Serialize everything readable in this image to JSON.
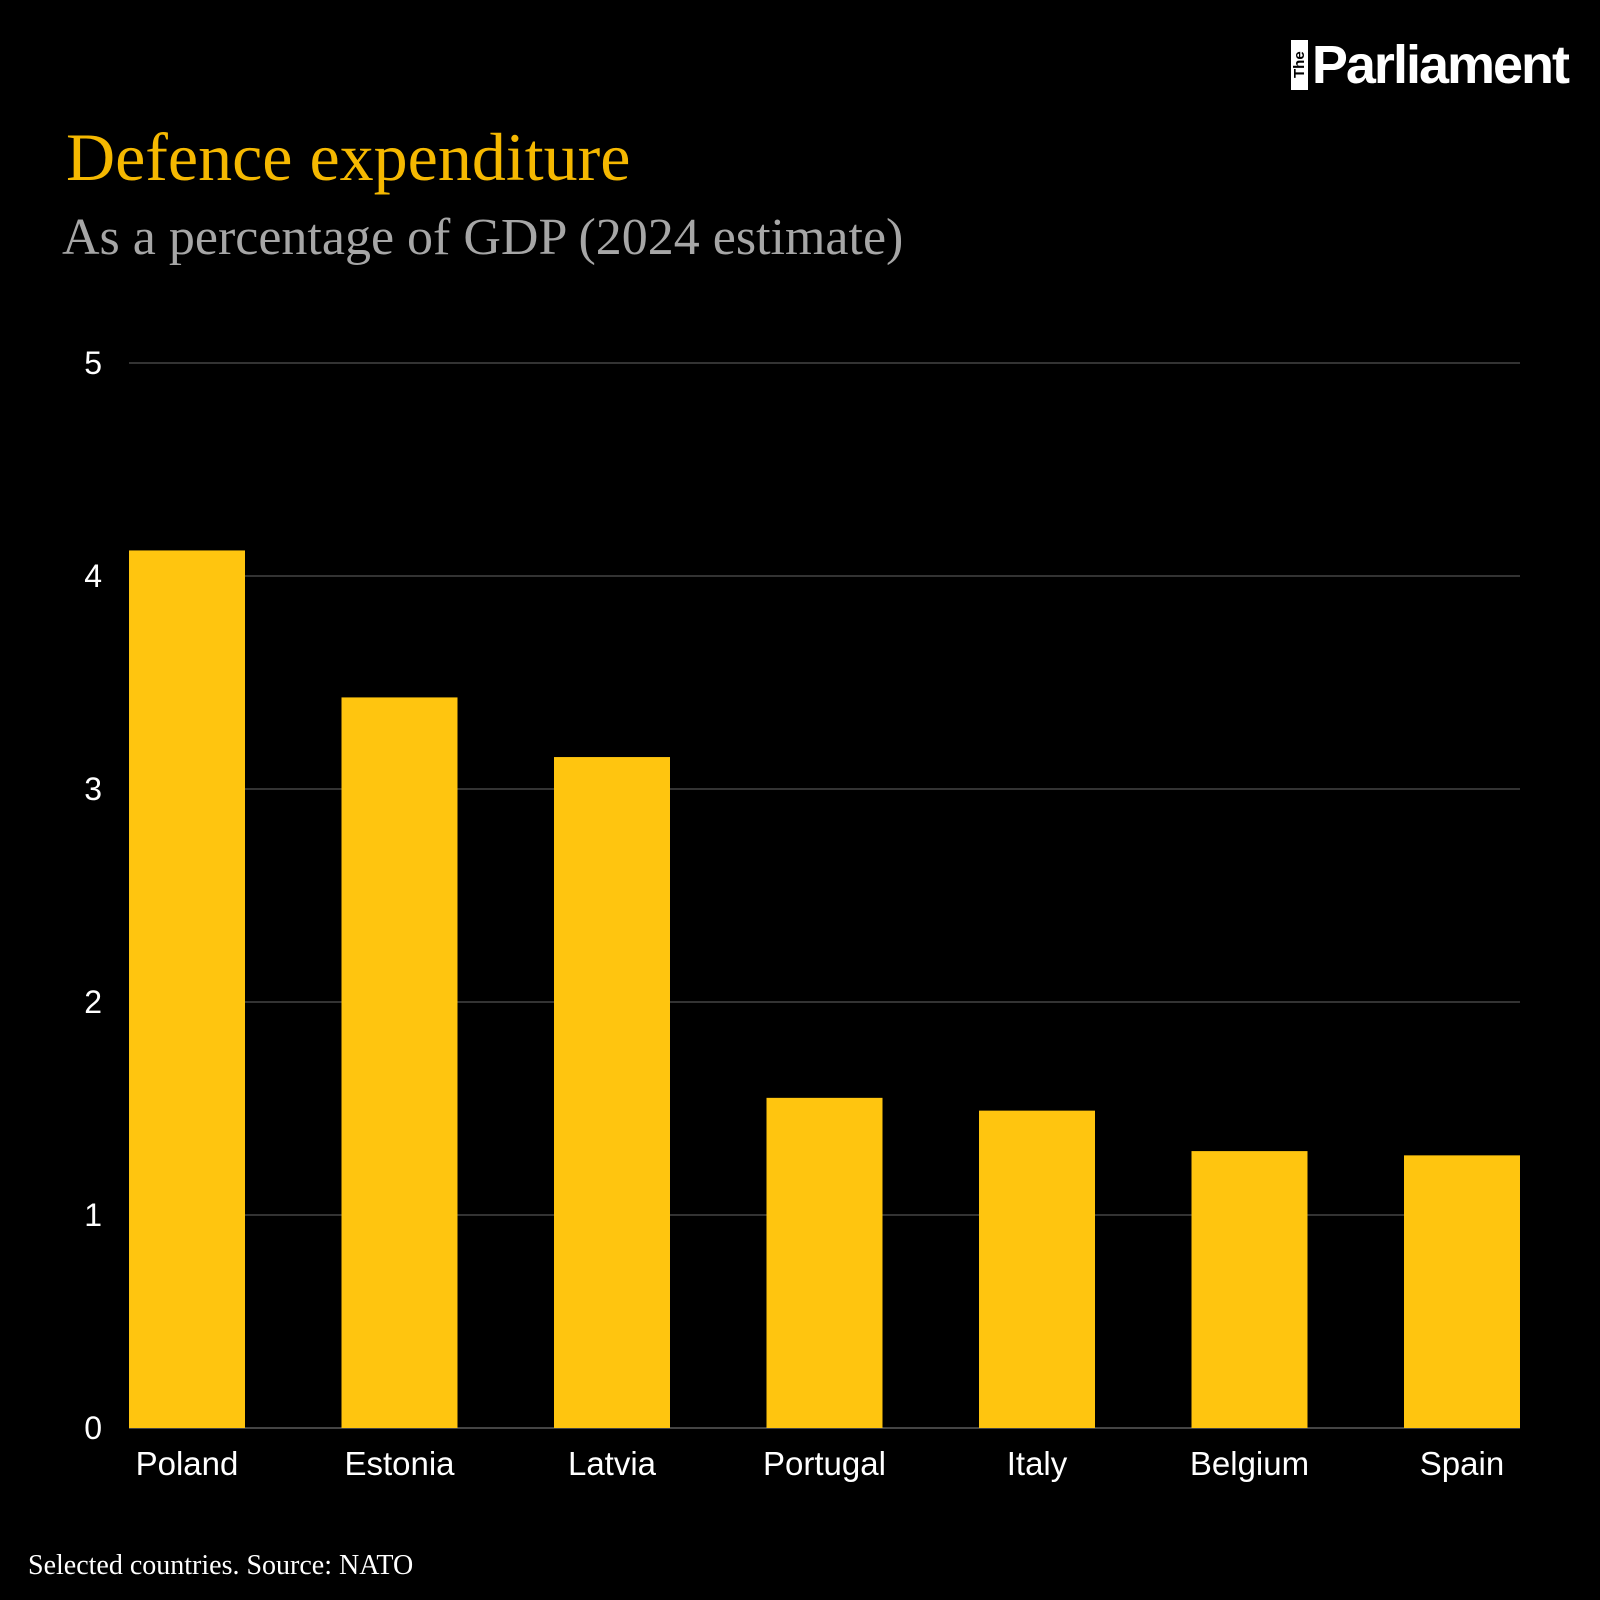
{
  "logo": {
    "the": "The",
    "name": "Parliament"
  },
  "footer": "Selected countries. Source: NATO",
  "colors": {
    "bar": "#ffc50f",
    "grid": "#444444",
    "title": "#f5b800",
    "subtitle": "#a6a6a6"
  },
  "chart_data": {
    "type": "bar",
    "title": "Defence expenditure",
    "subtitle": "As a percentage of GDP (2024 estimate)",
    "categories": [
      "Poland",
      "Estonia",
      "Latvia",
      "Portugal",
      "Italy",
      "Belgium",
      "Spain"
    ],
    "values": [
      4.12,
      3.43,
      3.15,
      1.55,
      1.49,
      1.3,
      1.28
    ],
    "ylim": [
      0,
      5
    ],
    "yticks": [
      0,
      1,
      2,
      3,
      4,
      5
    ],
    "xlabel": "",
    "ylabel": "",
    "grid": true
  }
}
